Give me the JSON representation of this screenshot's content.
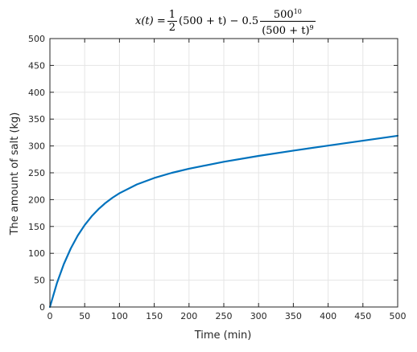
{
  "chart_data": {
    "type": "line",
    "title": {
      "lhs": "x(t) = ",
      "one": "1",
      "two": "2",
      "middle": "(500 + t) − 0.5",
      "num_base": "500",
      "num_exp": "10",
      "den_base": "(500 + t)",
      "den_exp": "9"
    },
    "xlabel": "Time (min)",
    "ylabel": "The amount of salt (kg)",
    "xlim": [
      0,
      500
    ],
    "ylim": [
      0,
      500
    ],
    "xticks": [
      0,
      50,
      100,
      150,
      200,
      250,
      300,
      350,
      400,
      450,
      500
    ],
    "yticks": [
      0,
      50,
      100,
      150,
      200,
      250,
      300,
      350,
      400,
      450,
      500
    ],
    "grid": true,
    "series": [
      {
        "color": "#0072bd",
        "x": [
          0,
          10,
          20,
          30,
          40,
          50,
          60,
          70,
          80,
          90,
          100,
          125,
          150,
          175,
          200,
          250,
          300,
          350,
          400,
          450,
          500
        ],
        "y": [
          0,
          44.1,
          79.9,
          109.1,
          133.0,
          152.6,
          168.9,
          182.5,
          193.9,
          203.6,
          211.9,
          228.3,
          240.3,
          249.8,
          257.6,
          270.5,
          281.4,
          291.3,
          300.6,
          309.8,
          319.0
        ]
      }
    ]
  },
  "colors": {
    "axis": "#262626",
    "grid": "#e5e5e5",
    "line": "#0072bd",
    "background": "#ffffff"
  }
}
